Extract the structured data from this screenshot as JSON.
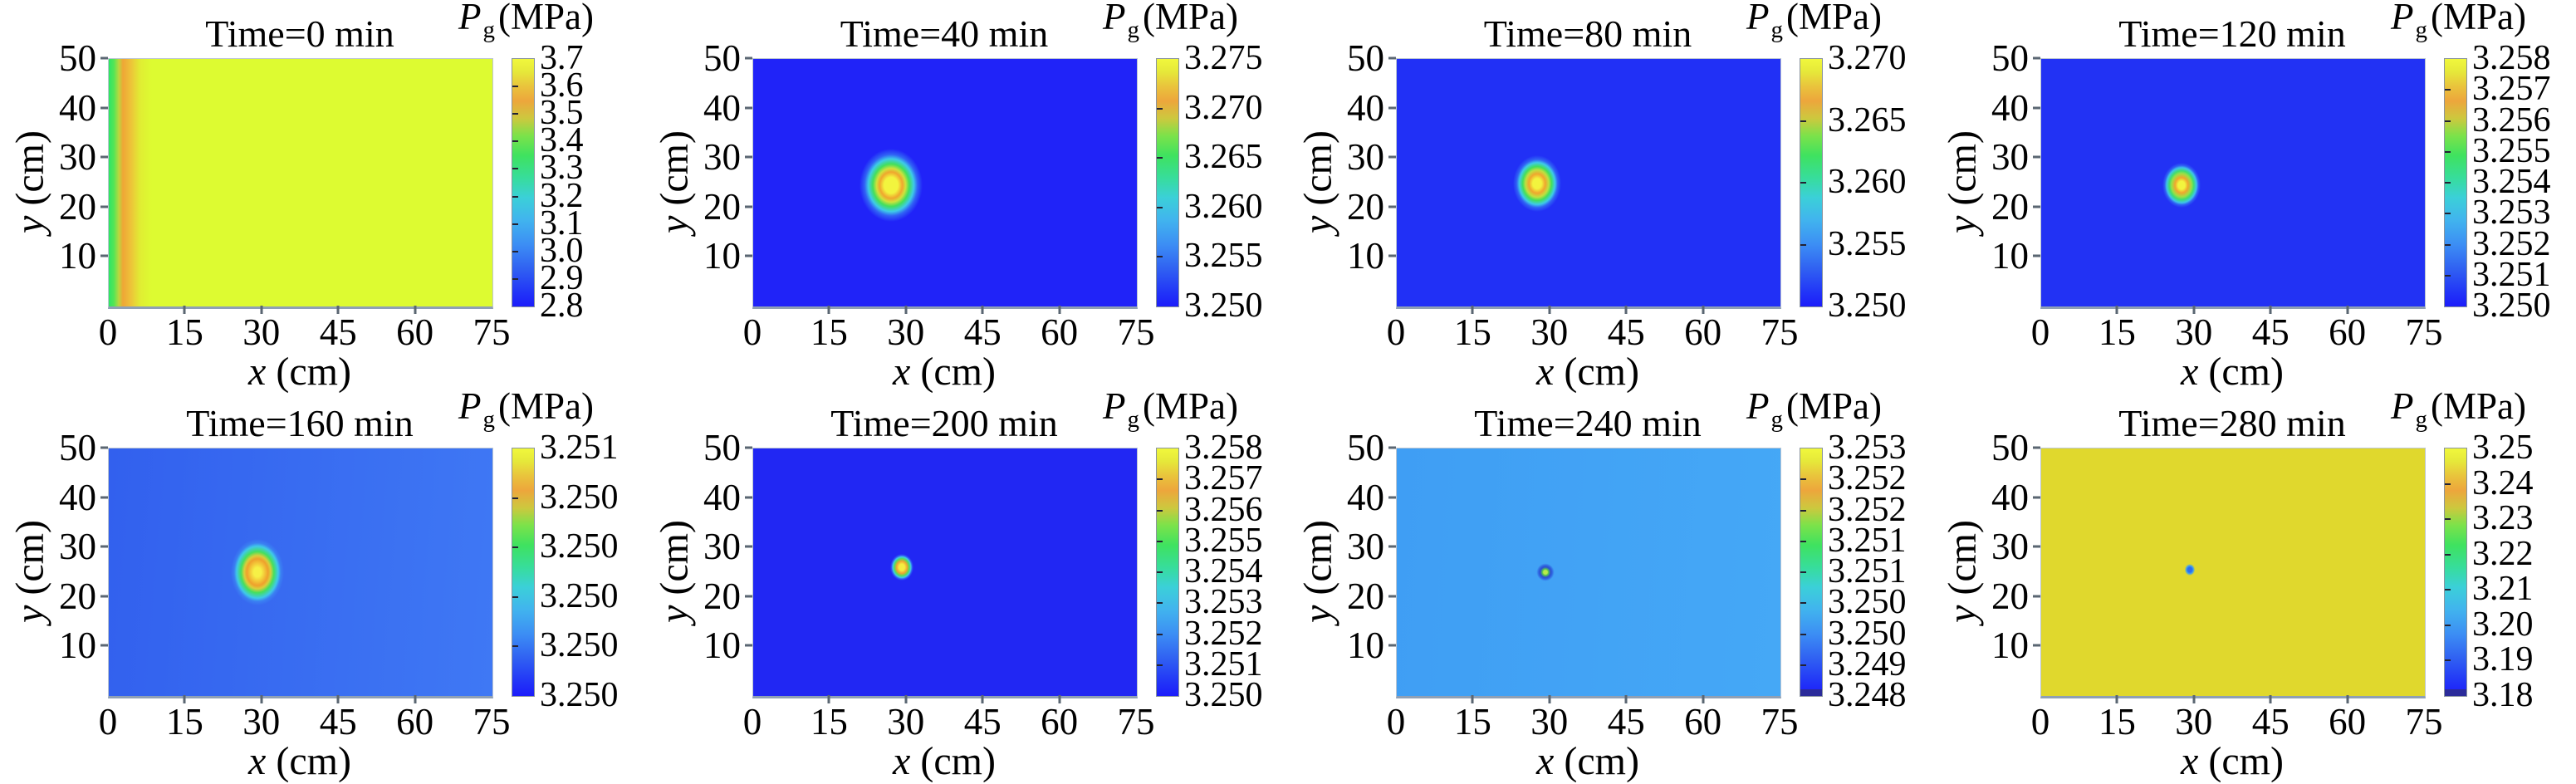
{
  "figure": {
    "colorbar_title_symbol": "P",
    "colorbar_title_sub": "g",
    "colorbar_title_unit": "(MPa)",
    "x_var": "x",
    "x_unit": "(cm)",
    "y_var": "y",
    "y_unit": "(cm)",
    "x_tick_labels": [
      "0",
      "15",
      "30",
      "45",
      "60",
      "75"
    ],
    "y_tick_labels": [
      "10",
      "20",
      "30",
      "40",
      "50"
    ],
    "colormap": "yellow-orange-green-cyan-blue rainbow",
    "accent_colors": {
      "field_yellow": "#ddfb31",
      "field_blue": "#2023f8",
      "field_light_blue": "#42a4f5",
      "hotspot_core": "#f2f43e",
      "hotspot_ring": "#f0a62e"
    }
  },
  "chart_data": [
    {
      "type": "heatmap",
      "title": "Time=0 min",
      "xlabel": "x (cm)",
      "ylabel": "y (cm)",
      "x_range": [
        0,
        75
      ],
      "y_range": [
        0,
        50
      ],
      "x_ticks": [
        0,
        15,
        30,
        45,
        60,
        75
      ],
      "y_ticks": [
        10,
        20,
        30,
        40,
        50
      ],
      "colorbar_label": "Pg (MPa)",
      "colorbar_tick_labels": [
        "3.7",
        "3.6",
        "3.5",
        "3.4",
        "3.3",
        "3.2",
        "3.1",
        "3.0",
        "2.9",
        "2.8"
      ],
      "colorbar_range": [
        2.8,
        3.7
      ],
      "background_MPa": 3.65,
      "field_description": "Uniform yellow field ~3.65 MPa; vertical inlet band at left edge: ~3.5 (green) at x=0 passing through ~3.6 (orange) by x~4 cm, uniform beyond x~8 cm",
      "hotspot": null
    },
    {
      "type": "heatmap",
      "title": "Time=40 min",
      "xlabel": "x (cm)",
      "ylabel": "y (cm)",
      "x_range": [
        0,
        75
      ],
      "y_range": [
        0,
        50
      ],
      "x_ticks": [
        0,
        15,
        30,
        45,
        60,
        75
      ],
      "y_ticks": [
        10,
        20,
        30,
        40,
        50
      ],
      "colorbar_label": "Pg (MPa)",
      "colorbar_tick_labels": [
        "3.275",
        "3.270",
        "3.265",
        "3.260",
        "3.255",
        "3.250"
      ],
      "colorbar_range": [
        3.25,
        3.275
      ],
      "background_MPa": 3.25,
      "field_description": "Uniform blue field ~3.250 MPa with rounded-square hot spot (yellow core, orange ring, green and cyan halo)",
      "hotspot": {
        "x_cm": 27,
        "y_cm": 24.5,
        "peak_MPa": 3.275
      }
    },
    {
      "type": "heatmap",
      "title": "Time=80 min",
      "xlabel": "x (cm)",
      "ylabel": "y (cm)",
      "x_range": [
        0,
        75
      ],
      "y_range": [
        0,
        50
      ],
      "x_ticks": [
        0,
        15,
        30,
        45,
        60,
        75
      ],
      "y_ticks": [
        10,
        20,
        30,
        40,
        50
      ],
      "colorbar_label": "Pg (MPa)",
      "colorbar_tick_labels": [
        "3.270",
        "3.265",
        "3.260",
        "3.255",
        "3.250"
      ],
      "colorbar_range": [
        3.25,
        3.27
      ],
      "background_MPa": 3.25,
      "field_description": "Uniform blue field ~3.250 MPa with smaller oval hot spot at injection point",
      "hotspot": {
        "x_cm": 27.5,
        "y_cm": 24.8,
        "peak_MPa": 3.27
      }
    },
    {
      "type": "heatmap",
      "title": "Time=120 min",
      "xlabel": "x (cm)",
      "ylabel": "y (cm)",
      "x_range": [
        0,
        75
      ],
      "y_range": [
        0,
        50
      ],
      "x_ticks": [
        0,
        15,
        30,
        45,
        60,
        75
      ],
      "y_ticks": [
        10,
        20,
        30,
        40,
        50
      ],
      "colorbar_label": "Pg (MPa)",
      "colorbar_tick_labels": [
        "3.258",
        "3.257",
        "3.256",
        "3.255",
        "3.254",
        "3.253",
        "3.252",
        "3.251",
        "3.250"
      ],
      "colorbar_range": [
        3.25,
        3.258
      ],
      "background_MPa": 3.25,
      "field_description": "Uniform blue field ~3.250 MPa with small round hot spot (yellow core, orange/green rings, cyan halo)",
      "hotspot": {
        "x_cm": 27.5,
        "y_cm": 24.5,
        "peak_MPa": 3.258
      }
    },
    {
      "type": "heatmap",
      "title": "Time=160 min",
      "xlabel": "x (cm)",
      "ylabel": "y (cm)",
      "x_range": [
        0,
        75
      ],
      "y_range": [
        0,
        50
      ],
      "x_ticks": [
        0,
        15,
        30,
        45,
        60,
        75
      ],
      "y_ticks": [
        10,
        20,
        30,
        40,
        50
      ],
      "colorbar_label": "Pg (MPa)",
      "colorbar_tick_labels": [
        "3.251",
        "3.250",
        "3.250",
        "3.250",
        "3.250",
        "3.250"
      ],
      "colorbar_range": [
        3.25,
        3.251
      ],
      "background_MPa": 3.25,
      "field_description": "Blue field ~3.250 MPa (slightly lighter toward right) with oval hot spot with thick orange ring and small yellow core",
      "hotspot": {
        "x_cm": 29,
        "y_cm": 25,
        "peak_MPa": 3.251
      }
    },
    {
      "type": "heatmap",
      "title": "Time=200 min",
      "xlabel": "x (cm)",
      "ylabel": "y (cm)",
      "x_range": [
        0,
        75
      ],
      "y_range": [
        0,
        50
      ],
      "x_ticks": [
        0,
        15,
        30,
        45,
        60,
        75
      ],
      "y_ticks": [
        10,
        20,
        30,
        40,
        50
      ],
      "colorbar_label": "Pg (MPa)",
      "colorbar_tick_labels": [
        "3.258",
        "3.257",
        "3.256",
        "3.255",
        "3.254",
        "3.253",
        "3.252",
        "3.251",
        "3.250"
      ],
      "colorbar_range": [
        3.25,
        3.258
      ],
      "background_MPa": 3.25,
      "field_description": "Uniform blue field ~3.250 MPa with tiny yellow-orange dot and thin green/cyan halo",
      "hotspot": {
        "x_cm": 29,
        "y_cm": 26,
        "peak_MPa": 3.258
      }
    },
    {
      "type": "heatmap",
      "title": "Time=240 min",
      "xlabel": "x (cm)",
      "ylabel": "y (cm)",
      "x_range": [
        0,
        75
      ],
      "y_range": [
        0,
        50
      ],
      "x_ticks": [
        0,
        15,
        30,
        45,
        60,
        75
      ],
      "y_ticks": [
        10,
        20,
        30,
        40,
        50
      ],
      "colorbar_label": "Pg (MPa)",
      "colorbar_tick_labels": [
        "3.253",
        "3.252",
        "3.252",
        "3.251",
        "3.251",
        "3.250",
        "3.250",
        "3.249",
        "3.248"
      ],
      "colorbar_range": [
        3.248,
        3.253
      ],
      "background_MPa": 3.25,
      "field_description": "Light-blue field ~3.250 MPa with tiny green-core dot surrounded by a dark-blue low-pressure ring (~3.248)",
      "hotspot": {
        "x_cm": 29,
        "y_cm": 25,
        "peak_MPa": 3.253
      }
    },
    {
      "type": "heatmap",
      "title": "Time=280 min",
      "xlabel": "x (cm)",
      "ylabel": "y (cm)",
      "x_range": [
        0,
        75
      ],
      "y_range": [
        0,
        50
      ],
      "x_ticks": [
        0,
        15,
        30,
        45,
        60,
        75
      ],
      "y_ticks": [
        10,
        20,
        30,
        40,
        50
      ],
      "colorbar_label": "Pg (MPa)",
      "colorbar_tick_labels": [
        "3.25",
        "3.24",
        "3.23",
        "3.22",
        "3.21",
        "3.20",
        "3.19",
        "3.18"
      ],
      "colorbar_range": [
        3.18,
        3.25
      ],
      "background_MPa": 3.25,
      "field_description": "Uniform yellow field ~3.25 MPa with a single tiny blue cold spot (~3.18 MPa)",
      "hotspot": {
        "x_cm": 29,
        "y_cm": 25.5,
        "peak_MPa": 3.18,
        "kind": "cold_spot"
      }
    }
  ]
}
